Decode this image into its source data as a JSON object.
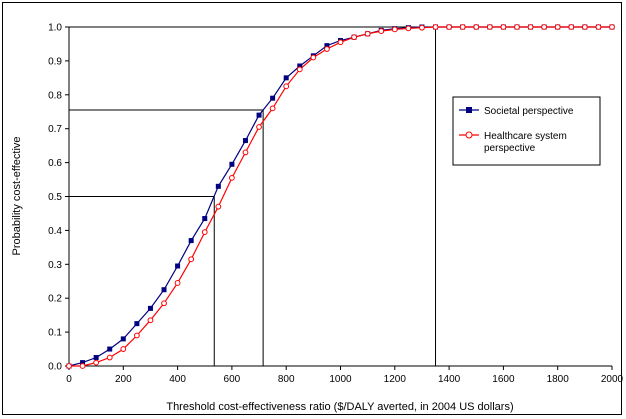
{
  "chart_data": {
    "type": "line",
    "title": "",
    "xlabel": "Threshold cost-effectiveness ratio ($/DALY averted, in 2004 US dollars)",
    "ylabel": "Probability cost-effective",
    "xlim": [
      0,
      2000
    ],
    "ylim": [
      0,
      1.0
    ],
    "x_ticks": [
      "0",
      "200",
      "400",
      "600",
      "800",
      "1000",
      "1200",
      "1400",
      "1600",
      "1800",
      "2000"
    ],
    "y_ticks": [
      "0.0",
      "0.1",
      "0.2",
      "0.3",
      "0.4",
      "0.5",
      "0.6",
      "0.7",
      "0.8",
      "0.9",
      "1.0"
    ],
    "grid": false,
    "legend_position": "right",
    "x": [
      0,
      50,
      100,
      150,
      200,
      250,
      300,
      350,
      400,
      450,
      500,
      550,
      600,
      650,
      700,
      750,
      800,
      850,
      900,
      950,
      1000,
      1050,
      1100,
      1150,
      1200,
      1250,
      1300,
      1350,
      1400,
      1450,
      1500,
      1550,
      1600,
      1650,
      1700,
      1750,
      1800,
      1850,
      1900,
      1950,
      2000
    ],
    "series": [
      {
        "name": "Societal perspective",
        "color": "#000080",
        "marker": "filled-square",
        "values": [
          0.0,
          0.01,
          0.025,
          0.05,
          0.08,
          0.125,
          0.17,
          0.225,
          0.295,
          0.37,
          0.435,
          0.53,
          0.595,
          0.665,
          0.74,
          0.79,
          0.85,
          0.885,
          0.915,
          0.945,
          0.96,
          0.97,
          0.98,
          0.99,
          0.995,
          0.998,
          1.0,
          1.0,
          1.0,
          1.0,
          1.0,
          1.0,
          1.0,
          1.0,
          1.0,
          1.0,
          1.0,
          1.0,
          1.0,
          1.0,
          1.0
        ]
      },
      {
        "name": "Healthcare system perspective",
        "color": "#ff0000",
        "marker": "open-circle",
        "values": [
          0.0,
          0.0,
          0.01,
          0.025,
          0.05,
          0.09,
          0.135,
          0.185,
          0.245,
          0.315,
          0.395,
          0.47,
          0.555,
          0.63,
          0.705,
          0.76,
          0.825,
          0.875,
          0.91,
          0.935,
          0.955,
          0.97,
          0.98,
          0.988,
          0.993,
          0.996,
          0.998,
          1.0,
          1.0,
          1.0,
          1.0,
          1.0,
          1.0,
          1.0,
          1.0,
          1.0,
          1.0,
          1.0,
          1.0,
          1.0,
          1.0
        ]
      }
    ],
    "reference_lines": [
      {
        "x": 535,
        "y": 0.5
      },
      {
        "x": 715,
        "y": 0.755
      },
      {
        "x": 1350,
        "y": 1.0
      }
    ]
  }
}
